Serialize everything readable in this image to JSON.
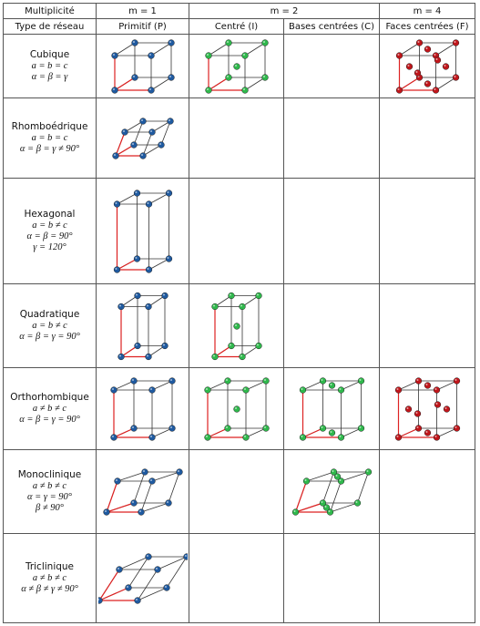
{
  "header": {
    "row1": [
      "Multiplicité",
      "m = 1",
      "m = 2",
      "m = 4"
    ],
    "row2": [
      "Type de réseau",
      "Primitif (P)",
      "Centré (I)",
      "Bases centrées (C)",
      "Faces centrées (F)"
    ]
  },
  "rows": [
    {
      "name": "Cubique",
      "lines": [
        "a = b = c",
        "α = β = γ"
      ]
    },
    {
      "name": "Rhomboédrique",
      "lines": [
        "a = b = c",
        "α = β = γ ≠ 90°"
      ]
    },
    {
      "name": "Hexagonal",
      "lines": [
        "a = b ≠ c",
        "α = β = 90°",
        "γ = 120°"
      ]
    },
    {
      "name": "Quadratique",
      "lines": [
        "a = b ≠ c",
        "α = β = γ = 90°"
      ]
    },
    {
      "name": "Orthorhombique",
      "lines": [
        "a ≠ b ≠ c",
        "α = β = γ = 90°"
      ]
    },
    {
      "name": "Monoclinique",
      "lines": [
        "a ≠ b ≠ c",
        "α = γ = 90°",
        "β ≠ 90°"
      ]
    },
    {
      "name": "Triclinique",
      "lines": [
        "a ≠ b ≠ c",
        "α ≠ β ≠ γ ≠ 90°"
      ]
    }
  ]
}
